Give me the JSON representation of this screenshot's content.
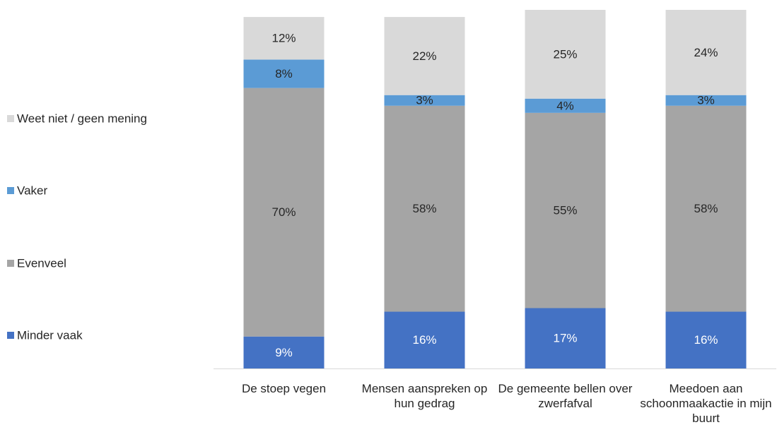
{
  "chart_data": {
    "type": "stacked_bar",
    "categories": [
      "De stoep vegen",
      "Mensen aanspreken op hun gedrag",
      "De gemeente bellen over zwerfafval",
      "Meedoen aan schoonmaakactie in mijn buurt"
    ],
    "series": [
      {
        "name": "Minder vaak",
        "color": "#4472c4",
        "label_color": "#ffffff",
        "values": [
          9,
          16,
          17,
          16
        ],
        "value_labels": [
          "9%",
          "16%",
          "17%",
          "16%"
        ]
      },
      {
        "name": "Evenveel",
        "color": "#a5a5a5",
        "label_color": "#262626",
        "values": [
          70,
          58,
          55,
          58
        ],
        "value_labels": [
          "70%",
          "58%",
          "55%",
          "58%"
        ]
      },
      {
        "name": "Vaker",
        "color": "#5b9bd5",
        "label_color": "#262626",
        "values": [
          8,
          3,
          4,
          3
        ],
        "value_labels": [
          "8%",
          "3%",
          "4%",
          "3%"
        ]
      },
      {
        "name": "Weet niet / geen mening",
        "color": "#d9d9d9",
        "label_color": "#262626",
        "values": [
          12,
          22,
          25,
          24
        ],
        "value_labels": [
          "12%",
          "22%",
          "25%",
          "24%"
        ]
      }
    ],
    "ylim": [
      0,
      101
    ],
    "legend": "left"
  }
}
